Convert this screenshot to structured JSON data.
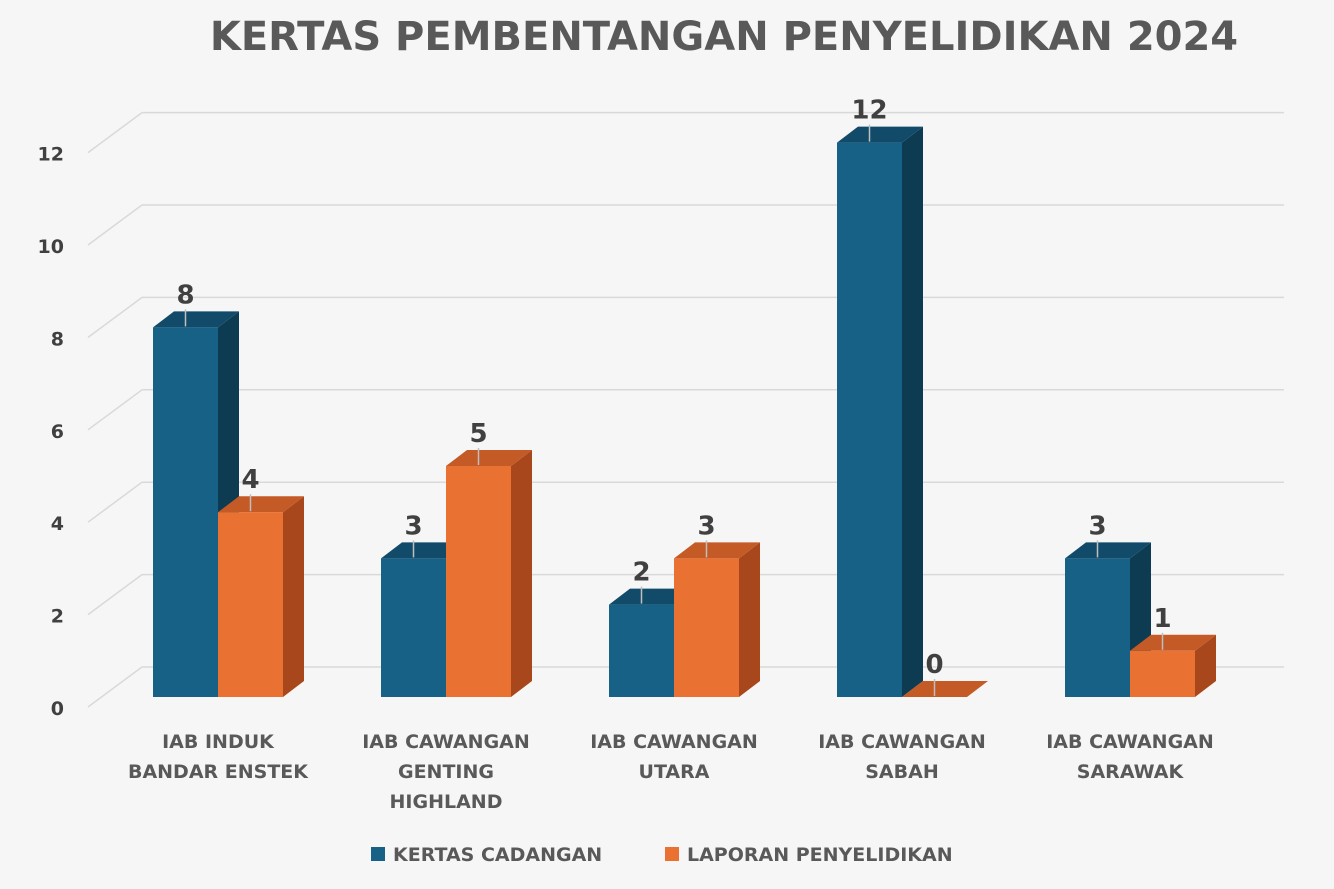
{
  "colors": {
    "background": "#f6f6f6",
    "grid": "#d9d9d9",
    "series1_front": "#176187",
    "series1_side": "#0d3b52",
    "series1_top": "#124b69",
    "series2_front": "#e97132",
    "series2_side": "#a9471c",
    "series2_top": "#c45a26"
  },
  "chart_data": {
    "type": "bar",
    "title": "KERTAS PEMBENTANGAN PENYELIDIKAN 2024",
    "categories": [
      [
        "IAB INDUK",
        "BANDAR ENSTEK"
      ],
      [
        "IAB CAWANGAN",
        "GENTING",
        "HIGHLAND"
      ],
      [
        "IAB CAWANGAN",
        "UTARA"
      ],
      [
        "IAB CAWANGAN",
        "SABAH"
      ],
      [
        "IAB CAWANGAN",
        "SARAWAK"
      ]
    ],
    "series": [
      {
        "name": "KERTAS CADANGAN",
        "values": [
          8,
          3,
          2,
          12,
          3
        ]
      },
      {
        "name": "LAPORAN PENYELIDIKAN",
        "values": [
          4,
          5,
          3,
          0,
          1
        ]
      }
    ],
    "yticks": [
      "0",
      "2",
      "4",
      "6",
      "8",
      "10",
      "12"
    ],
    "ylim": [
      0,
      12
    ],
    "xlabel": "",
    "ylabel": "",
    "grid": true,
    "legend_position": "bottom"
  }
}
